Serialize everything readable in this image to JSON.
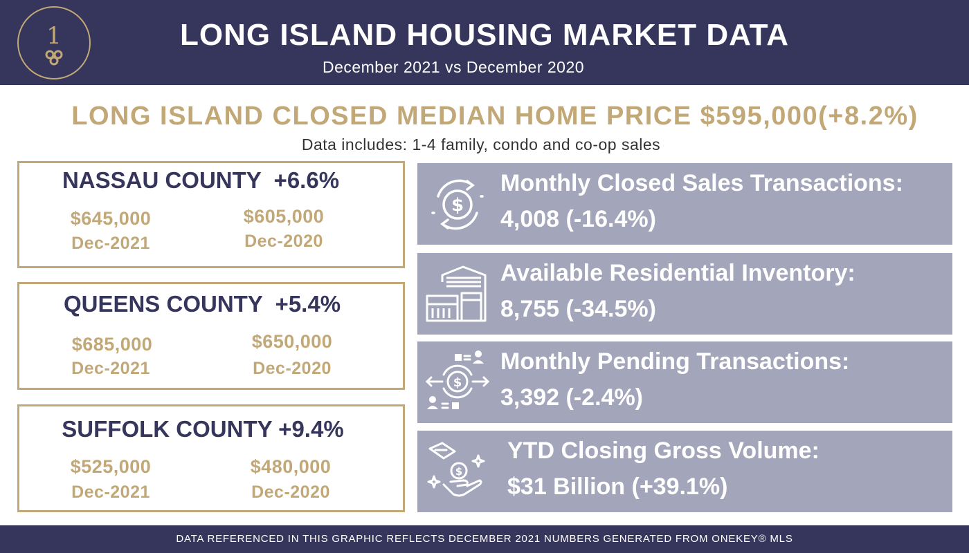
{
  "header": {
    "title": "LONG ISLAND HOUSING MARKET DATA",
    "subtitle": "December 2021 vs December 2020",
    "logo_icon": "key-1-logo-icon"
  },
  "headline": "LONG ISLAND CLOSED MEDIAN HOME PRICE $595,000(+8.2%)",
  "note": "Data includes: 1-4 family, condo and co-op sales",
  "counties": [
    {
      "name": "NASSAU COUNTY  +6.6%",
      "current_price": "$645,000",
      "current_label": "Dec-2021",
      "prior_price": "$605,000",
      "prior_label": "Dec-2020"
    },
    {
      "name": "QUEENS COUNTY  +5.4%",
      "current_price": "$685,000",
      "current_label": "Dec-2021",
      "prior_price": "$650,000",
      "prior_label": "Dec-2020"
    },
    {
      "name": "SUFFOLK COUNTY +9.4%",
      "current_price": "$525,000",
      "current_label": "Dec-2021",
      "prior_price": "$480,000",
      "prior_label": "Dec-2020"
    }
  ],
  "stats": [
    {
      "label": "Monthly Closed Sales Transactions:",
      "value": "4,008 (-16.4%)",
      "icon": "dollar-cycle-icon"
    },
    {
      "label": "Available Residential Inventory:",
      "value": "8,755 (-34.5%)",
      "icon": "warehouse-icon"
    },
    {
      "label": "Monthly Pending Transactions:",
      "value": "3,392 (-2.4%)",
      "icon": "money-transfer-icon"
    },
    {
      "label": "YTD Closing Gross Volume:",
      "value": "$31 Billion (+39.1%)",
      "icon": "money-hand-icon"
    }
  ],
  "footer": "DATA REFERENCED IN THIS GRAPHIC REFLECTS DECEMBER 2021 NUMBERS GENERATED FROM ONEKEY® MLS",
  "colors": {
    "navy": "#36355b",
    "gold": "#c2a876",
    "slate": "#a3a5ba"
  }
}
